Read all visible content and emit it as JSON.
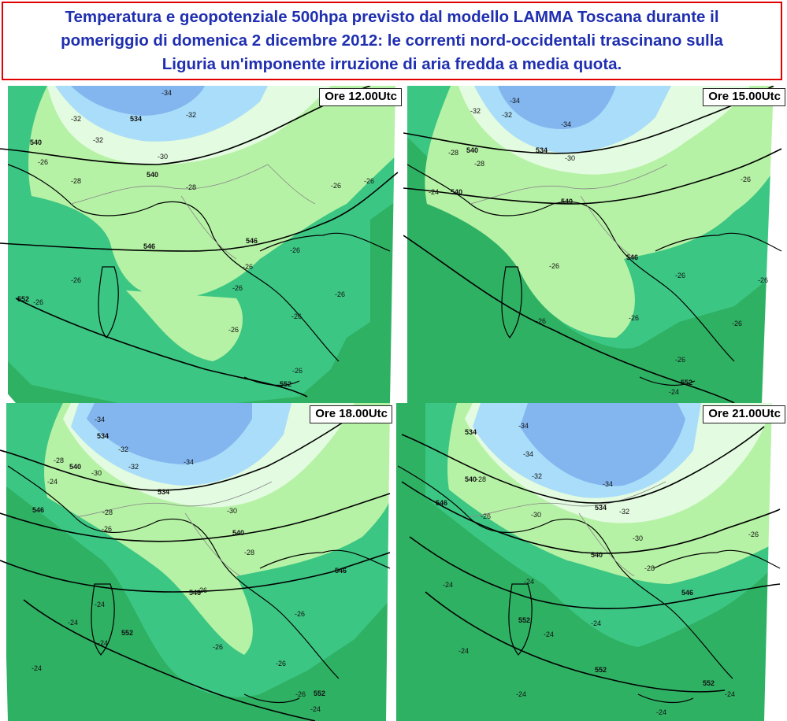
{
  "title": {
    "line1": "Temperatura e geopotenziale 500hpa previsto dal modello LAMMA Toscana durante il",
    "line2": "pomeriggio di domenica 2 dicembre 2012: le correnti nord-occidentali trascinano sulla",
    "line3": "Liguria un'imponente irruzione di aria fredda a media quota."
  },
  "colors": {
    "title_text": "#1f2fb0",
    "title_border": "#e00000",
    "temp_minus24_and_warmer": "#2fb163",
    "temp_minus26": "#3cc683",
    "temp_minus28": "#b6f2a5",
    "temp_minus30": "#e3fbe0",
    "temp_minus32": "#a9ddf9",
    "temp_minus34": "#83b6ef",
    "temp_minus36": "#6a9ae6",
    "warm_core": "#9fd33a",
    "coastline": "#000000",
    "borders": "#888888",
    "isohypse": "#000000"
  },
  "panels": [
    {
      "time": "Ore 12.00Utc",
      "temp_labels": [
        "-34",
        "-32",
        "-32",
        "-32",
        "-30",
        "-28",
        "-28",
        "-26",
        "-26",
        "-26",
        "-26",
        "-26",
        "-26",
        "-26",
        "-26",
        "-26",
        "-26",
        "-26",
        "-26"
      ],
      "geo_labels": [
        "534",
        "540",
        "540",
        "546",
        "546",
        "552",
        "552"
      ]
    },
    {
      "time": "Ore 15.00Utc",
      "temp_labels": [
        "-34",
        "-32",
        "-32",
        "-34",
        "-30",
        "-28",
        "-28",
        "-24",
        "-26",
        "-26",
        "-26",
        "-26",
        "-26",
        "-26",
        "-26",
        "-26",
        "-24"
      ],
      "geo_labels": [
        "534",
        "540",
        "540",
        "540",
        "546",
        "552"
      ]
    },
    {
      "time": "Ore 18.00Utc",
      "temp_labels": [
        "-34",
        "-32",
        "-34",
        "-32",
        "-30",
        "-30",
        "-28",
        "-28",
        "-28",
        "-26",
        "-26",
        "-26",
        "-26",
        "-26",
        "-26",
        "-24",
        "-24",
        "-24",
        "-24",
        "-24",
        "-24"
      ],
      "geo_labels": [
        "534",
        "534",
        "540",
        "540",
        "546",
        "546",
        "546",
        "552",
        "552"
      ]
    },
    {
      "time": "Ore 21.00Utc",
      "temp_labels": [
        "-34",
        "-34",
        "-32",
        "-34",
        "-32",
        "-30",
        "-30",
        "-28",
        "-28",
        "-26",
        "-26",
        "-24",
        "-24",
        "-24",
        "-24",
        "-24",
        "-24",
        "-24",
        "-24"
      ],
      "geo_labels": [
        "534",
        "534",
        "540",
        "540",
        "546",
        "546",
        "552",
        "552",
        "552"
      ]
    }
  ]
}
